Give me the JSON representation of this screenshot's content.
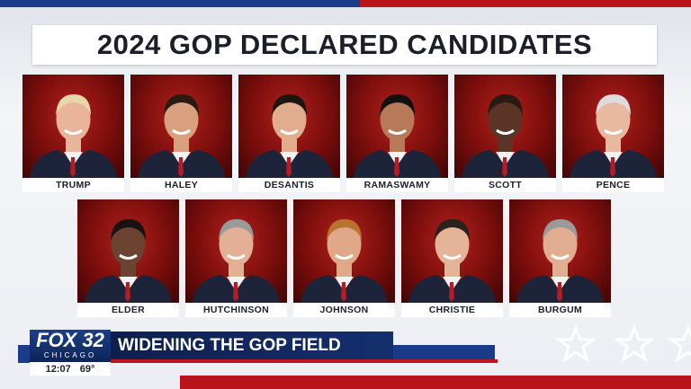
{
  "header": {
    "title": "2024 GOP DECLARED CANDIDATES"
  },
  "candidates": {
    "row1": [
      "TRUMP",
      "HALEY",
      "DESANTIS",
      "RAMASWAMY",
      "SCOTT",
      "PENCE"
    ],
    "row2": [
      "ELDER",
      "HUTCHINSON",
      "JOHNSON",
      "CHRISTIE",
      "BURGUM"
    ]
  },
  "ticker": {
    "logo": "FOX 32",
    "station": "CHICAGO",
    "headline": "WIDENING THE GOP FIELD",
    "time": "12:07",
    "temperature": "69°"
  }
}
